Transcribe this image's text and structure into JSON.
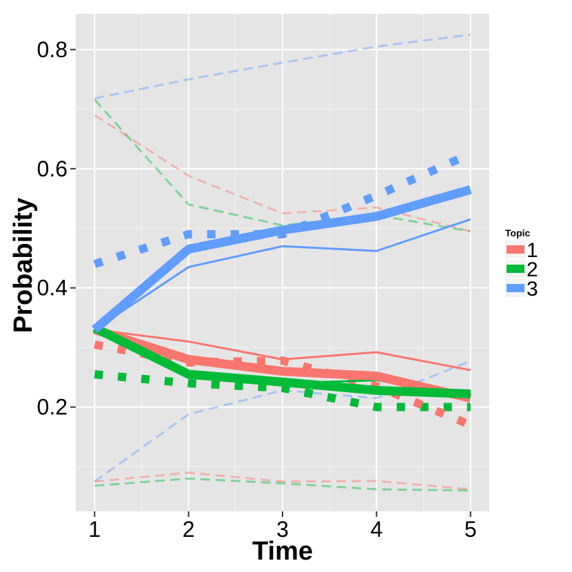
{
  "chart_data": {
    "type": "line",
    "xlabel": "Time",
    "ylabel": "Probability",
    "x": [
      1,
      2,
      3,
      4,
      5
    ],
    "x_tick_labels": [
      "1",
      "2",
      "3",
      "4",
      "5"
    ],
    "xlim": [
      0.8,
      5.2
    ],
    "ylim": [
      0.025,
      0.86
    ],
    "y_ticks": [
      0.2,
      0.4,
      0.6,
      0.8
    ],
    "y_tick_labels": [
      "0.2",
      "0.4",
      "0.6",
      "0.8"
    ],
    "grid": true,
    "legend": {
      "title": "Topic",
      "position": "right",
      "entries": [
        {
          "label": "1",
          "color": "#F8766D"
        },
        {
          "label": "2",
          "color": "#00BA38"
        },
        {
          "label": "3",
          "color": "#619CFF"
        }
      ]
    },
    "colors": {
      "1": "#F8766D",
      "2": "#00BA38",
      "3": "#619CFF"
    },
    "series": [
      {
        "name": "topic-3-upper-dashed",
        "topic": "3",
        "style": "dashed",
        "values": [
          0.718,
          0.75,
          0.778,
          0.805,
          0.825
        ]
      },
      {
        "name": "topic-3-lower-dashed",
        "topic": "3",
        "style": "dashed",
        "values": [
          0.075,
          0.188,
          0.228,
          0.215,
          0.277
        ]
      },
      {
        "name": "topic-2-upper-dashed",
        "topic": "2",
        "style": "dashed",
        "values": [
          0.716,
          0.54,
          0.505,
          0.522,
          0.495
        ]
      },
      {
        "name": "topic-2-lower-dashed",
        "topic": "2",
        "style": "dashed",
        "values": [
          0.068,
          0.08,
          0.072,
          0.062,
          0.06
        ]
      },
      {
        "name": "topic-1-upper-dashed",
        "topic": "1",
        "style": "dashed",
        "values": [
          0.69,
          0.588,
          0.525,
          0.535,
          0.495
        ]
      },
      {
        "name": "topic-1-lower-dashed",
        "topic": "1",
        "style": "dashed",
        "values": [
          0.075,
          0.09,
          0.075,
          0.076,
          0.062
        ]
      },
      {
        "name": "topic-3-dotted",
        "topic": "3",
        "style": "dotted",
        "values": [
          0.44,
          0.49,
          0.49,
          0.555,
          0.625
        ]
      },
      {
        "name": "topic-2-dotted",
        "topic": "2",
        "style": "dotted",
        "values": [
          0.255,
          0.24,
          0.232,
          0.2,
          0.2
        ]
      },
      {
        "name": "topic-1-dotted",
        "topic": "1",
        "style": "dotted",
        "values": [
          0.305,
          0.275,
          0.278,
          0.235,
          0.17
        ]
      },
      {
        "name": "topic-3-thin-solid",
        "topic": "3",
        "style": "thin",
        "values": [
          0.33,
          0.435,
          0.47,
          0.462,
          0.515
        ]
      },
      {
        "name": "topic-1-thin-solid",
        "topic": "1",
        "style": "thin",
        "values": [
          0.33,
          0.31,
          0.28,
          0.292,
          0.262
        ]
      },
      {
        "name": "topic-2-thin-solid",
        "topic": "2",
        "style": "thin",
        "values": [
          0.335,
          0.255,
          0.24,
          0.245,
          0.222
        ]
      },
      {
        "name": "topic-1-thick-solid",
        "topic": "1",
        "style": "thick",
        "values": [
          0.33,
          0.28,
          0.26,
          0.252,
          0.215
        ]
      },
      {
        "name": "topic-2-thick-solid",
        "topic": "2",
        "style": "thick",
        "values": [
          0.333,
          0.255,
          0.242,
          0.228,
          0.222
        ]
      },
      {
        "name": "topic-3-thick-solid",
        "topic": "3",
        "style": "thick",
        "values": [
          0.33,
          0.465,
          0.497,
          0.52,
          0.565
        ]
      }
    ]
  }
}
